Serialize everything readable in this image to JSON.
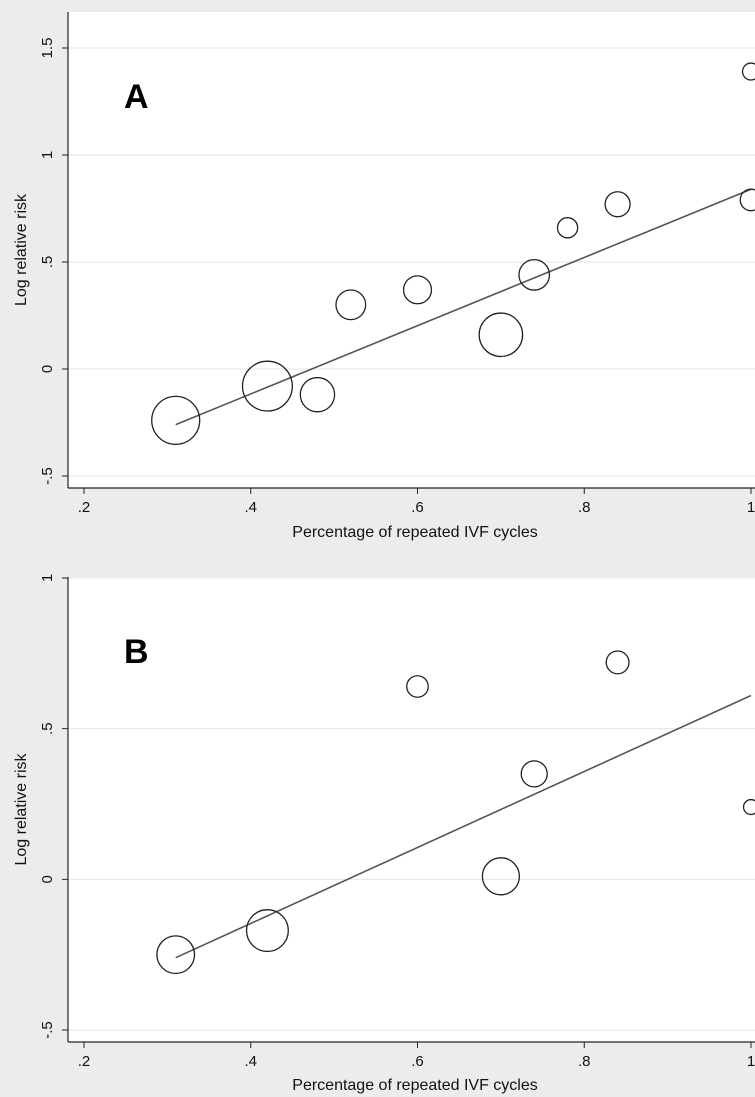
{
  "chart_data": [
    {
      "type": "scatter",
      "panel_label": "A",
      "xlabel": "Percentage of repeated IVF cycles",
      "ylabel": "Log relative risk",
      "xlim": [
        0.2,
        1.0
      ],
      "ylim": [
        -0.5,
        1.5
      ],
      "x_ticks": [
        ".2",
        ".4",
        ".6",
        ".8",
        "1"
      ],
      "y_ticks": [
        "-.5",
        "0",
        ".5",
        "1",
        "1.5"
      ],
      "grid": true,
      "points": [
        {
          "x": 0.31,
          "y": -0.24,
          "weight": 4.4
        },
        {
          "x": 0.42,
          "y": -0.08,
          "weight": 4.8
        },
        {
          "x": 0.48,
          "y": -0.12,
          "weight": 2.0
        },
        {
          "x": 0.52,
          "y": 0.3,
          "weight": 1.4
        },
        {
          "x": 0.6,
          "y": 0.37,
          "weight": 1.2
        },
        {
          "x": 0.7,
          "y": 0.16,
          "weight": 3.5
        },
        {
          "x": 0.74,
          "y": 0.44,
          "weight": 1.5
        },
        {
          "x": 0.78,
          "y": 0.66,
          "weight": 0.5
        },
        {
          "x": 0.84,
          "y": 0.77,
          "weight": 0.9
        },
        {
          "x": 1.0,
          "y": 0.79,
          "weight": 0.6
        },
        {
          "x": 1.0,
          "y": 1.39,
          "weight": 0.3
        }
      ],
      "fit_line": {
        "x": [
          0.31,
          1.0
        ],
        "y": [
          -0.26,
          0.84
        ]
      }
    },
    {
      "type": "scatter",
      "panel_label": "B",
      "xlabel": "Percentage of repeated IVF cycles",
      "ylabel": "Log relative risk",
      "xlim": [
        0.2,
        1.0
      ],
      "ylim": [
        -0.5,
        1.0
      ],
      "x_ticks": [
        ".2",
        ".4",
        ".6",
        ".8",
        "1"
      ],
      "y_ticks": [
        "-.5",
        "0",
        ".5",
        "1"
      ],
      "grid": true,
      "points": [
        {
          "x": 0.31,
          "y": -0.25,
          "weight": 2.5
        },
        {
          "x": 0.42,
          "y": -0.17,
          "weight": 3.2
        },
        {
          "x": 0.6,
          "y": 0.64,
          "weight": 0.6
        },
        {
          "x": 0.7,
          "y": 0.01,
          "weight": 2.4
        },
        {
          "x": 0.74,
          "y": 0.35,
          "weight": 1.0
        },
        {
          "x": 0.84,
          "y": 0.72,
          "weight": 0.7
        },
        {
          "x": 1.0,
          "y": 0.24,
          "weight": 0.2
        }
      ],
      "fit_line": {
        "x": [
          0.31,
          1.0
        ],
        "y": [
          -0.26,
          0.61
        ]
      }
    }
  ]
}
